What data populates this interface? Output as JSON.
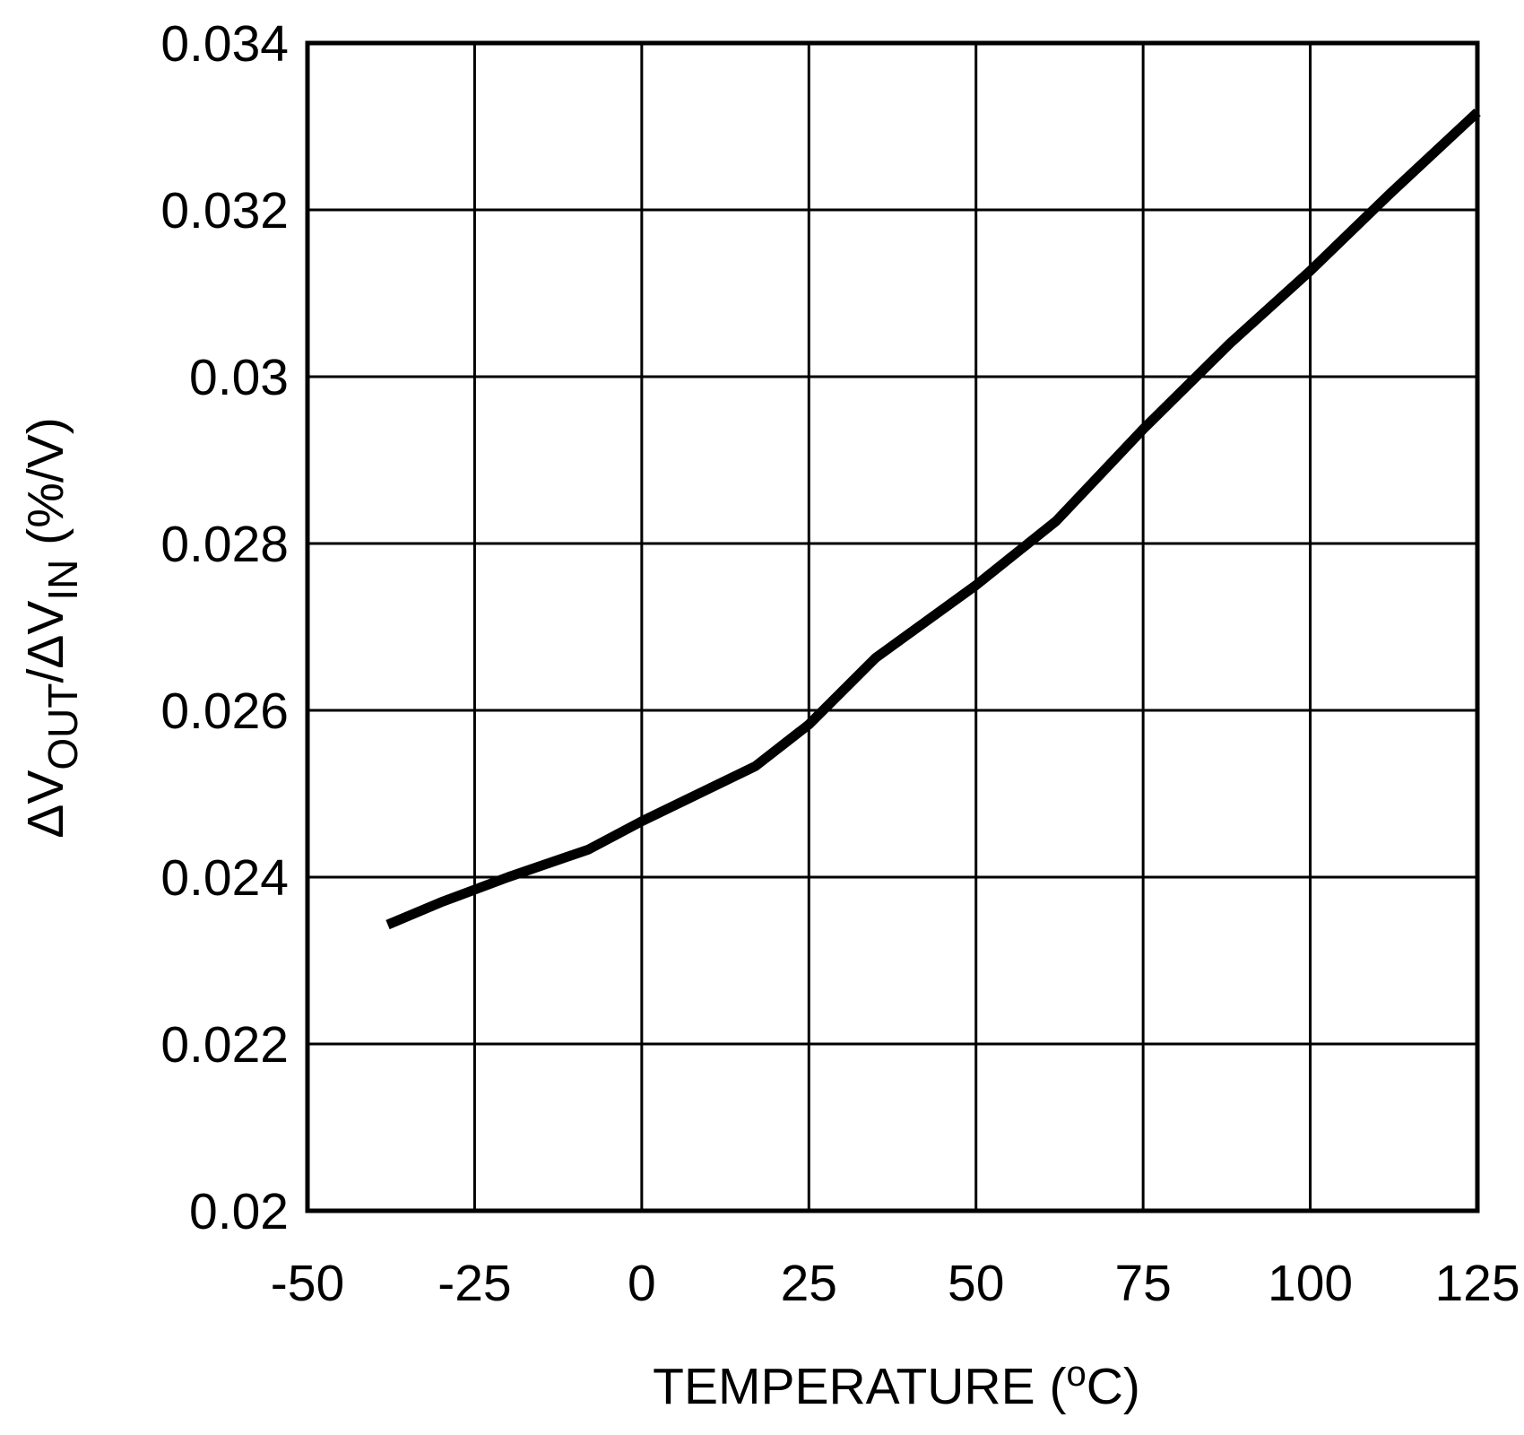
{
  "chart_data": {
    "type": "line",
    "title": "",
    "xlabel": "TEMPERATURE (°C)",
    "ylabel": "ΔVOUT/ΔVIN (%/V)",
    "xlim": [
      -50,
      125
    ],
    "ylim": [
      0.02,
      0.034
    ],
    "grid": true,
    "legend": "none",
    "x_ticks": [
      -50,
      -25,
      0,
      25,
      50,
      75,
      100,
      125
    ],
    "x_tick_labels": [
      "-50",
      "-25",
      "0",
      "25",
      "50",
      "75",
      "100",
      "125"
    ],
    "y_ticks": [
      0.02,
      0.022,
      0.024,
      0.026,
      0.028,
      0.03,
      0.032,
      0.034
    ],
    "y_tick_labels": [
      "0.02",
      "0.022",
      "0.024",
      "0.026",
      "0.028",
      "0.03",
      "0.032",
      "0.034"
    ],
    "series": [
      {
        "name": "ΔVOUT/ΔVIN",
        "color": "#000000",
        "x": [
          -38,
          -30,
          -20,
          -8,
          0,
          17,
          25,
          35,
          50,
          62,
          75,
          88,
          100,
          112,
          125
        ],
        "y": [
          0.02343,
          0.0237,
          0.024,
          0.02433,
          0.02467,
          0.02533,
          0.02583,
          0.02663,
          0.0275,
          0.02827,
          0.02937,
          0.0304,
          0.03127,
          0.0322,
          0.03317
        ]
      }
    ]
  },
  "labels": {
    "ylabel_delta1": "ΔV",
    "ylabel_sub1": "OUT",
    "ylabel_slash": "/ΔV",
    "ylabel_sub2": "IN",
    "ylabel_units": " (%/V)",
    "xlabel_prefix": "TEMPERATURE (",
    "xlabel_degree": "o",
    "xlabel_suffix": "C)"
  }
}
